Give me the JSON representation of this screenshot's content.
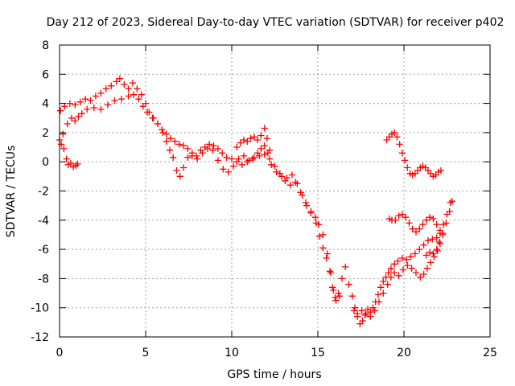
{
  "chart_data": {
    "type": "scatter",
    "title": "Day 212 of 2023, Sidereal Day-to-day VTEC variation (SDTVAR) for receiver p402",
    "xlabel": "GPS time / hours",
    "ylabel": "SDTVAR / TECUs",
    "xlim": [
      0,
      25
    ],
    "ylim": [
      -12,
      8
    ],
    "xticks": [
      0,
      5,
      10,
      15,
      20,
      25
    ],
    "yticks": [
      -12,
      -10,
      -8,
      -6,
      -4,
      -2,
      0,
      2,
      4,
      6,
      8
    ],
    "grid": true,
    "marker": "plus",
    "color": "#ff0000",
    "series": [
      {
        "values": [
          [
            0.0,
            1.5
          ],
          [
            0.1,
            1.2
          ],
          [
            0.25,
            0.9
          ],
          [
            0.4,
            0.2
          ],
          [
            0.5,
            -0.2
          ],
          [
            0.65,
            -0.1
          ],
          [
            0.8,
            -0.35
          ],
          [
            0.95,
            -0.25
          ],
          [
            1.05,
            -0.15
          ],
          [
            0.2,
            1.9
          ],
          [
            0.45,
            2.6
          ],
          [
            0.7,
            3.0
          ],
          [
            0.9,
            2.8
          ],
          [
            1.1,
            3.1
          ],
          [
            1.3,
            3.3
          ],
          [
            1.6,
            3.6
          ],
          [
            2.0,
            3.7
          ],
          [
            2.4,
            3.6
          ],
          [
            2.8,
            3.9
          ],
          [
            3.2,
            4.2
          ],
          [
            3.6,
            4.3
          ],
          [
            4.0,
            4.5
          ],
          [
            4.3,
            4.6
          ],
          [
            4.6,
            4.3
          ],
          [
            4.85,
            3.8
          ],
          [
            5.1,
            3.4
          ],
          [
            5.4,
            3.0
          ],
          [
            5.7,
            2.6
          ],
          [
            6.0,
            2.0
          ],
          [
            6.2,
            1.4
          ],
          [
            6.4,
            0.8
          ],
          [
            6.6,
            0.3
          ],
          [
            6.8,
            -0.6
          ],
          [
            7.0,
            -1.0
          ],
          [
            7.2,
            -0.4
          ],
          [
            7.45,
            0.3
          ],
          [
            7.7,
            0.4
          ],
          [
            8.0,
            0.2
          ],
          [
            8.3,
            0.6
          ],
          [
            8.6,
            0.9
          ],
          [
            8.9,
            0.8
          ],
          [
            9.2,
            0.1
          ],
          [
            9.5,
            -0.5
          ],
          [
            9.8,
            -0.7
          ],
          [
            10.1,
            -0.3
          ],
          [
            10.4,
            0.2
          ],
          [
            10.7,
            0.4
          ],
          [
            11.0,
            0.1
          ],
          [
            11.3,
            0.3
          ],
          [
            11.6,
            0.4
          ],
          [
            11.9,
            0.5
          ],
          [
            12.2,
            0.2
          ],
          [
            12.5,
            -0.3
          ],
          [
            12.8,
            -0.8
          ],
          [
            13.1,
            -1.3
          ],
          [
            13.4,
            -1.6
          ],
          [
            13.7,
            -1.4
          ],
          [
            14.0,
            -2.1
          ],
          [
            14.3,
            -2.8
          ],
          [
            14.6,
            -3.5
          ],
          [
            14.9,
            -4.2
          ],
          [
            15.1,
            -5.1
          ],
          [
            15.3,
            -5.9
          ],
          [
            15.5,
            -6.6
          ],
          [
            15.7,
            -7.5
          ],
          [
            15.85,
            -8.6
          ],
          [
            16.0,
            -9.3
          ],
          [
            16.2,
            -9.0
          ],
          [
            16.4,
            -8.0
          ],
          [
            16.6,
            -7.2
          ],
          [
            0.05,
            3.5
          ],
          [
            0.3,
            3.8
          ],
          [
            0.6,
            4.0
          ],
          [
            0.9,
            3.9
          ],
          [
            1.2,
            4.1
          ],
          [
            1.5,
            4.3
          ],
          [
            1.8,
            4.2
          ],
          [
            2.1,
            4.5
          ],
          [
            2.4,
            4.7
          ],
          [
            2.7,
            5.0
          ],
          [
            3.0,
            5.2
          ],
          [
            3.3,
            5.5
          ],
          [
            3.5,
            5.7
          ],
          [
            3.75,
            5.3
          ],
          [
            4.0,
            5.0
          ],
          [
            4.25,
            5.4
          ],
          [
            4.5,
            5.0
          ],
          [
            4.75,
            4.6
          ],
          [
            5.0,
            4.0
          ],
          [
            5.2,
            3.4
          ],
          [
            5.45,
            3.0
          ],
          [
            5.7,
            2.6
          ],
          [
            5.95,
            2.2
          ],
          [
            6.2,
            1.9
          ],
          [
            6.45,
            1.6
          ],
          [
            6.7,
            1.4
          ],
          [
            6.95,
            1.2
          ],
          [
            7.2,
            1.1
          ],
          [
            7.45,
            0.9
          ],
          [
            7.7,
            0.6
          ],
          [
            7.95,
            0.4
          ],
          [
            8.2,
            0.8
          ],
          [
            8.45,
            1.0
          ],
          [
            8.7,
            1.2
          ],
          [
            8.95,
            1.1
          ],
          [
            9.2,
            0.9
          ],
          [
            9.45,
            0.6
          ],
          [
            9.7,
            0.3
          ],
          [
            10.0,
            0.2
          ],
          [
            10.3,
            0.0
          ],
          [
            10.6,
            -0.2
          ],
          [
            10.9,
            0.0
          ],
          [
            11.2,
            0.2
          ],
          [
            11.5,
            0.6
          ],
          [
            11.7,
            0.9
          ],
          [
            11.9,
            1.1
          ],
          [
            12.1,
            0.6
          ],
          [
            12.3,
            -0.2
          ],
          [
            12.6,
            -0.7
          ],
          [
            12.9,
            -1.0
          ],
          [
            13.2,
            -1.1
          ],
          [
            13.5,
            -0.9
          ],
          [
            13.8,
            -1.5
          ],
          [
            14.1,
            -2.3
          ],
          [
            14.35,
            -3.0
          ],
          [
            14.6,
            -3.4
          ],
          [
            14.85,
            -3.8
          ],
          [
            15.05,
            -4.3
          ],
          [
            15.3,
            -5.0
          ],
          [
            15.55,
            -6.3
          ],
          [
            15.75,
            -7.6
          ],
          [
            15.9,
            -8.8
          ],
          [
            16.05,
            -9.5
          ],
          [
            16.25,
            -9.2
          ],
          [
            10.3,
            1.0
          ],
          [
            10.5,
            1.3
          ],
          [
            10.7,
            1.5
          ],
          [
            10.9,
            1.4
          ],
          [
            11.1,
            1.6
          ],
          [
            11.3,
            1.7
          ],
          [
            11.5,
            1.5
          ],
          [
            11.7,
            1.8
          ],
          [
            11.9,
            2.3
          ],
          [
            12.05,
            1.6
          ],
          [
            12.2,
            0.8
          ],
          [
            16.8,
            -8.4
          ],
          [
            17.0,
            -9.2
          ],
          [
            17.15,
            -10.0
          ],
          [
            17.3,
            -10.6
          ],
          [
            17.45,
            -11.1
          ],
          [
            17.6,
            -10.9
          ],
          [
            17.75,
            -10.5
          ],
          [
            17.9,
            -10.1
          ],
          [
            18.05,
            -10.3
          ],
          [
            18.2,
            -10.0
          ],
          [
            18.35,
            -9.6
          ],
          [
            18.5,
            -9.1
          ],
          [
            18.65,
            -8.6
          ],
          [
            18.8,
            -8.2
          ],
          [
            18.95,
            -7.9
          ],
          [
            19.1,
            -7.6
          ],
          [
            19.25,
            -7.3
          ],
          [
            19.45,
            -7.0
          ],
          [
            19.65,
            -6.8
          ],
          [
            19.9,
            -6.6
          ],
          [
            20.15,
            -6.7
          ],
          [
            20.4,
            -6.5
          ],
          [
            20.65,
            -6.3
          ],
          [
            20.9,
            -6.0
          ],
          [
            21.15,
            -5.7
          ],
          [
            21.4,
            -5.4
          ],
          [
            21.65,
            -5.3
          ],
          [
            21.9,
            -5.2
          ],
          [
            22.1,
            -4.9
          ],
          [
            22.3,
            -4.3
          ],
          [
            22.5,
            -3.6
          ],
          [
            22.7,
            -2.8
          ],
          [
            17.1,
            -10.2
          ],
          [
            17.3,
            -10.4
          ],
          [
            17.55,
            -10.2
          ],
          [
            17.8,
            -10.4
          ],
          [
            18.05,
            -10.6
          ],
          [
            18.3,
            -10.2
          ],
          [
            18.55,
            -9.6
          ],
          [
            18.8,
            -9.0
          ],
          [
            19.05,
            -8.4
          ],
          [
            19.25,
            -7.9
          ],
          [
            19.45,
            -7.6
          ],
          [
            19.7,
            -7.8
          ],
          [
            19.95,
            -7.4
          ],
          [
            20.2,
            -7.1
          ],
          [
            20.45,
            -7.3
          ],
          [
            20.7,
            -7.6
          ],
          [
            20.95,
            -7.9
          ],
          [
            21.15,
            -7.7
          ],
          [
            21.35,
            -7.3
          ],
          [
            21.55,
            -6.9
          ],
          [
            21.75,
            -6.5
          ],
          [
            21.95,
            -6.1
          ],
          [
            22.1,
            -5.6
          ],
          [
            22.25,
            -4.9
          ],
          [
            21.3,
            -6.4
          ],
          [
            21.5,
            -6.2
          ],
          [
            21.7,
            -6.3
          ],
          [
            21.9,
            -6.0
          ],
          [
            22.05,
            -5.5
          ],
          [
            22.25,
            -5.0
          ],
          [
            22.45,
            -4.2
          ],
          [
            22.65,
            -3.4
          ],
          [
            22.8,
            -2.7
          ],
          [
            19.15,
            -3.9
          ],
          [
            19.3,
            -4.0
          ],
          [
            19.5,
            -4.0
          ],
          [
            19.7,
            -3.7
          ],
          [
            19.9,
            -3.6
          ],
          [
            20.1,
            -3.8
          ],
          [
            20.3,
            -4.2
          ],
          [
            20.5,
            -4.6
          ],
          [
            20.7,
            -4.8
          ],
          [
            20.9,
            -4.6
          ],
          [
            21.1,
            -4.3
          ],
          [
            21.3,
            -4.0
          ],
          [
            21.5,
            -3.8
          ],
          [
            21.7,
            -3.9
          ],
          [
            21.9,
            -4.3
          ],
          [
            22.1,
            -4.7
          ],
          [
            19.0,
            1.5
          ],
          [
            19.15,
            1.7
          ],
          [
            19.3,
            1.9
          ],
          [
            19.45,
            2.0
          ],
          [
            19.6,
            1.7
          ],
          [
            19.75,
            1.2
          ],
          [
            19.9,
            0.6
          ],
          [
            20.05,
            0.1
          ],
          [
            20.2,
            -0.4
          ],
          [
            20.35,
            -0.8
          ],
          [
            20.5,
            -0.9
          ],
          [
            20.65,
            -0.8
          ],
          [
            20.8,
            -0.6
          ],
          [
            20.95,
            -0.4
          ],
          [
            21.1,
            -0.3
          ],
          [
            21.25,
            -0.4
          ],
          [
            21.4,
            -0.6
          ],
          [
            21.55,
            -0.8
          ],
          [
            21.7,
            -1.0
          ],
          [
            21.85,
            -0.9
          ],
          [
            22.0,
            -0.7
          ],
          [
            22.15,
            -0.6
          ]
        ]
      }
    ]
  }
}
